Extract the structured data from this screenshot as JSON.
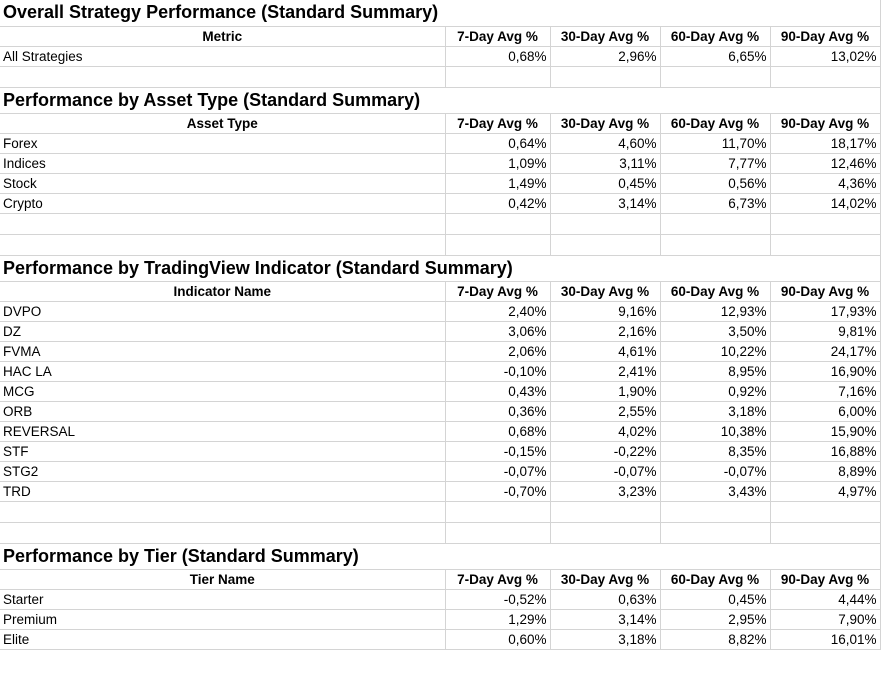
{
  "sections": {
    "overall": {
      "title": "Overall Strategy Performance (Standard Summary)",
      "headers": [
        "Metric",
        "7-Day Avg %",
        "30-Day Avg %",
        "60-Day Avg %",
        "90-Day Avg %"
      ],
      "rows": [
        [
          "All Strategies",
          "0,68%",
          "2,96%",
          "6,65%",
          "13,02%"
        ]
      ]
    },
    "asset_type": {
      "title": "Performance by Asset Type (Standard Summary)",
      "headers": [
        "Asset Type",
        "7-Day Avg %",
        "30-Day Avg %",
        "60-Day Avg %",
        "90-Day Avg %"
      ],
      "rows": [
        [
          "Forex",
          "0,64%",
          "4,60%",
          "11,70%",
          "18,17%"
        ],
        [
          "Indices",
          "1,09%",
          "3,11%",
          "7,77%",
          "12,46%"
        ],
        [
          "Stock",
          "1,49%",
          "0,45%",
          "0,56%",
          "4,36%"
        ],
        [
          "Crypto",
          "0,42%",
          "3,14%",
          "6,73%",
          "14,02%"
        ]
      ]
    },
    "indicator": {
      "title": "Performance by TradingView Indicator (Standard Summary)",
      "headers": [
        "Indicator Name",
        "7-Day Avg %",
        "30-Day Avg %",
        "60-Day Avg %",
        "90-Day Avg %"
      ],
      "rows": [
        [
          "DVPO",
          "2,40%",
          "9,16%",
          "12,93%",
          "17,93%"
        ],
        [
          "DZ",
          "3,06%",
          "2,16%",
          "3,50%",
          "9,81%"
        ],
        [
          "FVMA",
          "2,06%",
          "4,61%",
          "10,22%",
          "24,17%"
        ],
        [
          "HAC LA",
          "-0,10%",
          "2,41%",
          "8,95%",
          "16,90%"
        ],
        [
          "MCG",
          "0,43%",
          "1,90%",
          "0,92%",
          "7,16%"
        ],
        [
          "ORB",
          "0,36%",
          "2,55%",
          "3,18%",
          "6,00%"
        ],
        [
          "REVERSAL",
          "0,68%",
          "4,02%",
          "10,38%",
          "15,90%"
        ],
        [
          "STF",
          "-0,15%",
          "-0,22%",
          "8,35%",
          "16,88%"
        ],
        [
          "STG2",
          "-0,07%",
          "-0,07%",
          "-0,07%",
          "8,89%"
        ],
        [
          "TRD",
          "-0,70%",
          "3,23%",
          "3,43%",
          "4,97%"
        ]
      ]
    },
    "tier": {
      "title": "Performance by Tier (Standard Summary)",
      "headers": [
        "Tier Name",
        "7-Day Avg %",
        "30-Day Avg %",
        "60-Day Avg %",
        "90-Day Avg %"
      ],
      "rows": [
        [
          "Starter",
          "-0,52%",
          "0,63%",
          "0,45%",
          "4,44%"
        ],
        [
          "Premium",
          "1,29%",
          "3,14%",
          "2,95%",
          "7,90%"
        ],
        [
          "Elite",
          "0,60%",
          "3,18%",
          "8,82%",
          "16,01%"
        ]
      ]
    }
  }
}
